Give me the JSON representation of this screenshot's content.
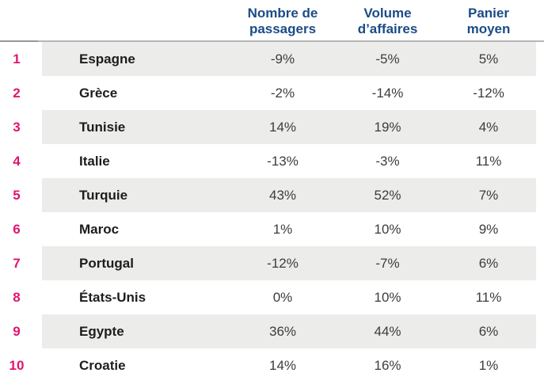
{
  "chart_data": {
    "type": "table",
    "title": "",
    "columns": [
      "Nombre de\npassagers",
      "Volume\nd’affaires",
      "Panier\nmoyen"
    ],
    "rows": [
      {
        "rank": "1",
        "country": "Espagne",
        "passengers": "-9%",
        "volume": "-5%",
        "basket": "5%"
      },
      {
        "rank": "2",
        "country": "Grèce",
        "passengers": "-2%",
        "volume": "-14%",
        "basket": "-12%"
      },
      {
        "rank": "3",
        "country": "Tunisie",
        "passengers": "14%",
        "volume": "19%",
        "basket": "4%"
      },
      {
        "rank": "4",
        "country": "Italie",
        "passengers": "-13%",
        "volume": "-3%",
        "basket": "11%"
      },
      {
        "rank": "5",
        "country": "Turquie",
        "passengers": "43%",
        "volume": "52%",
        "basket": "7%"
      },
      {
        "rank": "6",
        "country": "Maroc",
        "passengers": "1%",
        "volume": "10%",
        "basket": "9%"
      },
      {
        "rank": "7",
        "country": "Portugal",
        "passengers": "-12%",
        "volume": "-7%",
        "basket": "6%"
      },
      {
        "rank": "8",
        "country": "États-Unis",
        "passengers": "0%",
        "volume": "10%",
        "basket": "11%"
      },
      {
        "rank": "9",
        "country": "Egypte",
        "passengers": "36%",
        "volume": "44%",
        "basket": "6%"
      },
      {
        "rank": "10",
        "country": "Croatie",
        "passengers": "14%",
        "volume": "16%",
        "basket": "1%"
      }
    ]
  },
  "colors": {
    "header_text": "#1a4c87",
    "rank_text": "#e2146f",
    "stripe_background": "#ececeb",
    "country_text": "#1d1d1b",
    "value_text": "#3c3c3b",
    "header_border": "#b6b6b6"
  }
}
